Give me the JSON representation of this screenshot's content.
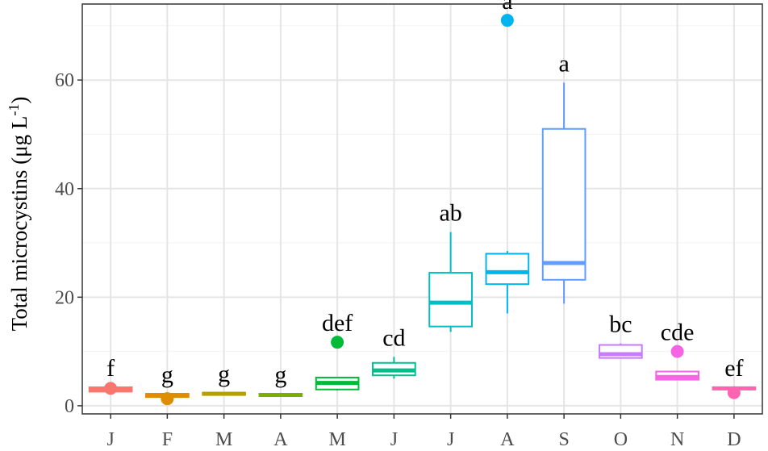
{
  "chart_data": {
    "type": "boxplot",
    "ylabel": "Total microcystins (μg L",
    "ylabel_superscript": "-1",
    "ylabel_close": ")",
    "ylim": [
      -1.5,
      74
    ],
    "yticks": [
      0,
      20,
      40,
      60
    ],
    "grid": true,
    "categories": [
      "J",
      "F",
      "M",
      "A",
      "M",
      "J",
      "J",
      "A",
      "S",
      "O",
      "N",
      "D"
    ],
    "series": [
      {
        "category": "J",
        "q1": 2.6,
        "median": 3.0,
        "q3": 3.4,
        "whisker_low": 2.6,
        "whisker_high": 3.4,
        "outliers": [
          3.2
        ],
        "letter": "f",
        "color": "#F8766D"
      },
      {
        "category": "F",
        "q1": 1.6,
        "median": 2.0,
        "q3": 2.2,
        "whisker_low": 1.6,
        "whisker_high": 2.2,
        "outliers": [
          1.3
        ],
        "letter": "g",
        "color": "#DE8C00"
      },
      {
        "category": "M",
        "q1": 2.0,
        "median": 2.2,
        "q3": 2.4,
        "whisker_low": 2.0,
        "whisker_high": 2.4,
        "outliers": [],
        "letter": "g",
        "color": "#B79F00"
      },
      {
        "category": "A",
        "q1": 1.8,
        "median": 2.0,
        "q3": 2.2,
        "whisker_low": 1.8,
        "whisker_high": 2.2,
        "outliers": [],
        "letter": "g",
        "color": "#7CAE00"
      },
      {
        "category": "M",
        "q1": 3.0,
        "median": 4.2,
        "q3": 5.2,
        "whisker_low": 2.8,
        "whisker_high": 5.2,
        "outliers": [
          11.7
        ],
        "letter": "def",
        "color": "#00BA38"
      },
      {
        "category": "J",
        "q1": 5.6,
        "median": 6.5,
        "q3": 7.9,
        "whisker_low": 5.0,
        "whisker_high": 9.0,
        "outliers": [],
        "letter": "cd",
        "color": "#00C08B"
      },
      {
        "category": "J",
        "q1": 14.6,
        "median": 19.0,
        "q3": 24.5,
        "whisker_low": 13.6,
        "whisker_high": 32.0,
        "outliers": [],
        "letter": "ab",
        "color": "#00BFC4"
      },
      {
        "category": "A",
        "q1": 22.4,
        "median": 24.6,
        "q3": 28.0,
        "whisker_low": 17.0,
        "whisker_high": 28.5,
        "outliers": [
          71.0
        ],
        "letter": "a",
        "color": "#00B4F0"
      },
      {
        "category": "S",
        "q1": 23.2,
        "median": 26.3,
        "q3": 51.0,
        "whisker_low": 18.8,
        "whisker_high": 59.5,
        "outliers": [],
        "letter": "a",
        "color": "#619CFF"
      },
      {
        "category": "O",
        "q1": 8.8,
        "median": 9.5,
        "q3": 11.2,
        "whisker_low": 8.8,
        "whisker_high": 11.5,
        "outliers": [],
        "letter": "bc",
        "color": "#C77CFF"
      },
      {
        "category": "N",
        "q1": 4.8,
        "median": 5.3,
        "q3": 6.3,
        "whisker_low": 4.8,
        "whisker_high": 6.3,
        "outliers": [
          10.0
        ],
        "letter": "cde",
        "color": "#F564E3"
      },
      {
        "category": "D",
        "q1": 3.0,
        "median": 3.2,
        "q3": 3.4,
        "whisker_low": 3.0,
        "whisker_high": 3.4,
        "outliers": [
          2.4
        ],
        "letter": "ef",
        "color": "#FF64B0"
      }
    ]
  }
}
